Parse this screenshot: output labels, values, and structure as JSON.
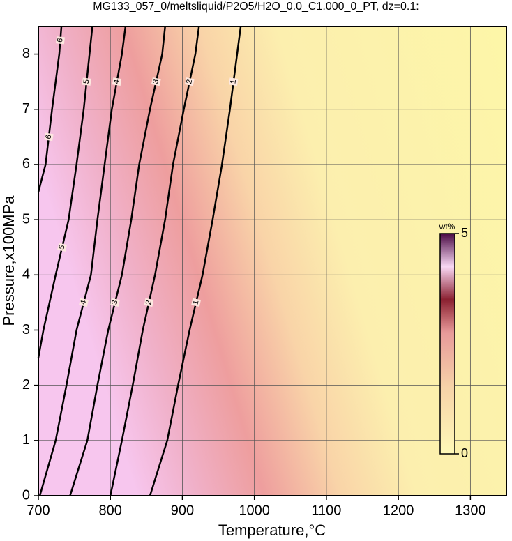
{
  "chart_data": {
    "type": "contour",
    "title": "MG133_057_0/meltsliquid/P2O5/H2O_0.0_C1.000_0_PT, dz=0.1:",
    "x_label": "Temperature,°C",
    "y_label": "Pressure,x100MPa",
    "xlim": [
      700,
      1350
    ],
    "xticks": [
      700,
      800,
      900,
      1000,
      1100,
      1200,
      1300
    ],
    "ylim": [
      0,
      8.5
    ],
    "yticks": [
      0,
      1,
      2,
      3,
      4,
      5,
      6,
      7,
      8
    ],
    "grid": true,
    "contours": [
      {
        "level": 1,
        "x": [
          855,
          879,
          894,
          910,
          928,
          942,
          955,
          966,
          976,
          981
        ],
        "y": [
          0,
          1,
          2,
          3,
          4,
          5,
          6,
          7,
          8,
          8.5
        ]
      },
      {
        "level": 2,
        "x": [
          800,
          816,
          831,
          845,
          862,
          876,
          887,
          902,
          918,
          923
        ],
        "y": [
          0,
          1,
          2,
          3,
          4,
          5,
          6,
          7,
          8,
          8.5
        ]
      },
      {
        "level": 3,
        "x": [
          744,
          768,
          782,
          797,
          816,
          829,
          840,
          855,
          872,
          876
        ],
        "y": [
          0,
          1,
          2,
          3,
          4,
          5,
          6,
          7,
          8,
          8.5
        ]
      },
      {
        "level": 4,
        "x": [
          702,
          724,
          739,
          753,
          773,
          782,
          792,
          802,
          816,
          821
        ],
        "y": [
          0,
          1,
          2,
          3,
          4,
          5,
          6,
          7,
          8,
          8.5
        ]
      },
      {
        "level": 5,
        "x": [
          700,
          707,
          724,
          742,
          753,
          763,
          771,
          775
        ],
        "y": [
          2.5,
          3,
          4,
          5,
          6,
          7,
          8,
          8.5
        ]
      },
      {
        "level": 6,
        "x": [
          700,
          710,
          719,
          729,
          732
        ],
        "y": [
          5.5,
          6,
          7,
          8,
          8.5
        ]
      }
    ],
    "colorbar": {
      "label": "wt%",
      "lim": [
        0,
        5
      ],
      "ticks": [
        0,
        5
      ]
    }
  }
}
